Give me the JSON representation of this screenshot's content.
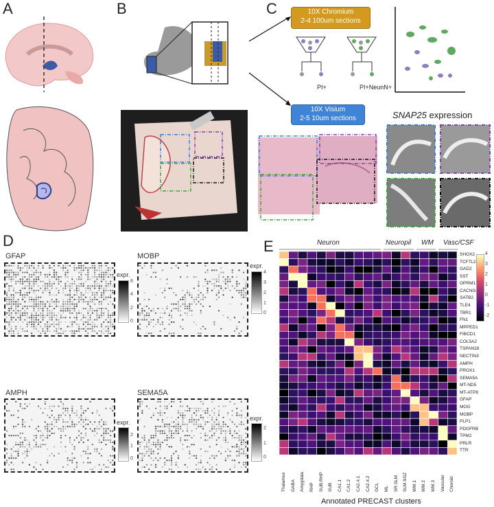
{
  "panels": {
    "a": "A",
    "b": "B",
    "c": "C",
    "d": "D",
    "e": "E"
  },
  "panel_c": {
    "chromium_box": [
      "10X Chromium",
      "2-4 100um sections"
    ],
    "visium_box": [
      "10X Visium",
      "2-5 10um sections"
    ],
    "sort_labels": [
      "PI+",
      "PI+NeunN+"
    ],
    "snap_title": "SNAP25",
    "snap_suffix": " expression"
  },
  "panel_d": {
    "genes": [
      {
        "name": "GFAP",
        "max": [
          0,
          2,
          4,
          6
        ]
      },
      {
        "name": "MOBP",
        "max": [
          0,
          1,
          2,
          3,
          4
        ]
      },
      {
        "name": "AMPH",
        "max": [
          0,
          1,
          2
        ]
      },
      {
        "name": "SEMA5A",
        "max": [
          0,
          1,
          2
        ]
      }
    ],
    "legend_label": "expr."
  },
  "panel_e": {
    "groups": [
      "Neuron",
      "Neuropil",
      "WM",
      "Vasc/CSF"
    ],
    "xlabel": "Annotated PRECAST clusters",
    "columns": [
      "Thalamus",
      "GABA",
      "Amygdala",
      "RHP",
      "SUB.RHP",
      "SUB",
      "CA1.1",
      "CA1.2",
      "CA2.4.1",
      "CA2.4.2",
      "GCL",
      "ML",
      "SR.SLM",
      "SLM.SGZ",
      "WM.1",
      "WM.2",
      "WM.3",
      "Vascular",
      "Choroid"
    ],
    "rows": [
      "SHOX2",
      "TCF7L2",
      "GAD2",
      "SST",
      "OPRM1",
      "CACNG4",
      "SATB2",
      "TLE4",
      "TBR1",
      "FN1",
      "MPPED1",
      "FIBCD1",
      "COL5A2",
      "TSPAN18",
      "NECTIN3",
      "AMPH",
      "PROX1",
      "SEMA5A",
      "MT-ND5",
      "MT-ATP8",
      "GFAP",
      "MOG",
      "MOBP",
      "PLP1",
      "PDGFRB",
      "TPM2",
      "PRLR",
      "TTR"
    ],
    "colorbar_ticks": [
      "4",
      "3",
      "2",
      "1",
      "0",
      "-1",
      "-2"
    ],
    "colors": {
      "low": "#000004",
      "mid": "#3b0f70",
      "high": "#fcfdbf"
    },
    "highlights": [
      [
        0,
        0
      ],
      [
        1,
        0
      ],
      [
        2,
        1
      ],
      [
        3,
        1
      ],
      [
        3,
        2
      ],
      [
        4,
        2
      ],
      [
        5,
        3
      ],
      [
        6,
        3
      ],
      [
        6,
        4
      ],
      [
        7,
        4
      ],
      [
        7,
        5
      ],
      [
        8,
        5
      ],
      [
        8,
        6
      ],
      [
        9,
        4
      ],
      [
        10,
        6
      ],
      [
        11,
        6
      ],
      [
        11,
        7
      ],
      [
        12,
        7
      ],
      [
        13,
        8
      ],
      [
        13,
        9
      ],
      [
        14,
        8
      ],
      [
        14,
        9
      ],
      [
        15,
        9
      ],
      [
        16,
        10
      ],
      [
        17,
        12
      ],
      [
        18,
        12
      ],
      [
        18,
        13
      ],
      [
        19,
        13
      ],
      [
        20,
        14
      ],
      [
        21,
        14
      ],
      [
        21,
        15
      ],
      [
        22,
        15
      ],
      [
        22,
        16
      ],
      [
        23,
        15
      ],
      [
        24,
        17
      ],
      [
        25,
        17
      ],
      [
        26,
        18
      ],
      [
        27,
        18
      ]
    ]
  }
}
